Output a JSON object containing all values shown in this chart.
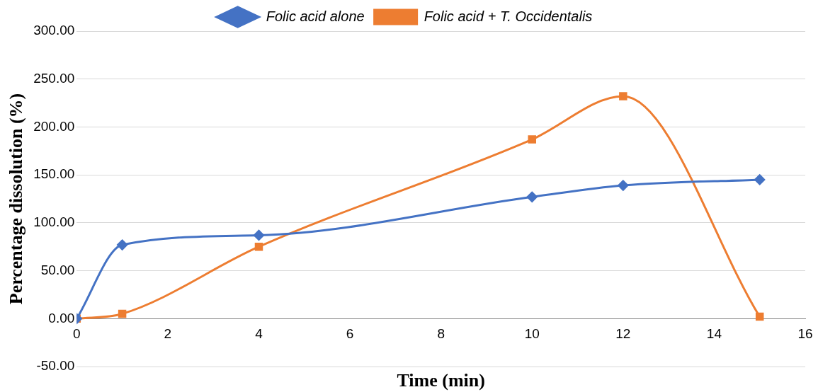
{
  "chart_data": {
    "type": "line",
    "x": [
      0,
      1,
      4,
      10,
      12,
      15
    ],
    "series": [
      {
        "name": "Folic acid alone",
        "color": "#4472c4",
        "marker": "diamond",
        "values": [
          0,
          77,
          87,
          127,
          139,
          145
        ]
      },
      {
        "name": "Folic acid + T. Occidentalis",
        "color": "#ed7d31",
        "marker": "square",
        "values": [
          0,
          5,
          75,
          187,
          232,
          2
        ]
      }
    ],
    "xlabel": "Time (min)",
    "ylabel": "Percentage dissolution (%)",
    "xlim": [
      0,
      16
    ],
    "xticks": [
      0,
      2,
      4,
      6,
      8,
      10,
      12,
      14,
      16
    ],
    "ylim": [
      -50,
      300
    ],
    "yticks": [
      {
        "value": -50,
        "label": "-50.00"
      },
      {
        "value": 0,
        "label": "0.00"
      },
      {
        "value": 50,
        "label": "50.00"
      },
      {
        "value": 100,
        "label": "100.00"
      },
      {
        "value": 150,
        "label": "150.00"
      },
      {
        "value": 200,
        "label": "200.00"
      },
      {
        "value": 250,
        "label": "250.00"
      },
      {
        "value": 300,
        "label": "300.00"
      }
    ],
    "grid": "y",
    "legend": "top"
  }
}
